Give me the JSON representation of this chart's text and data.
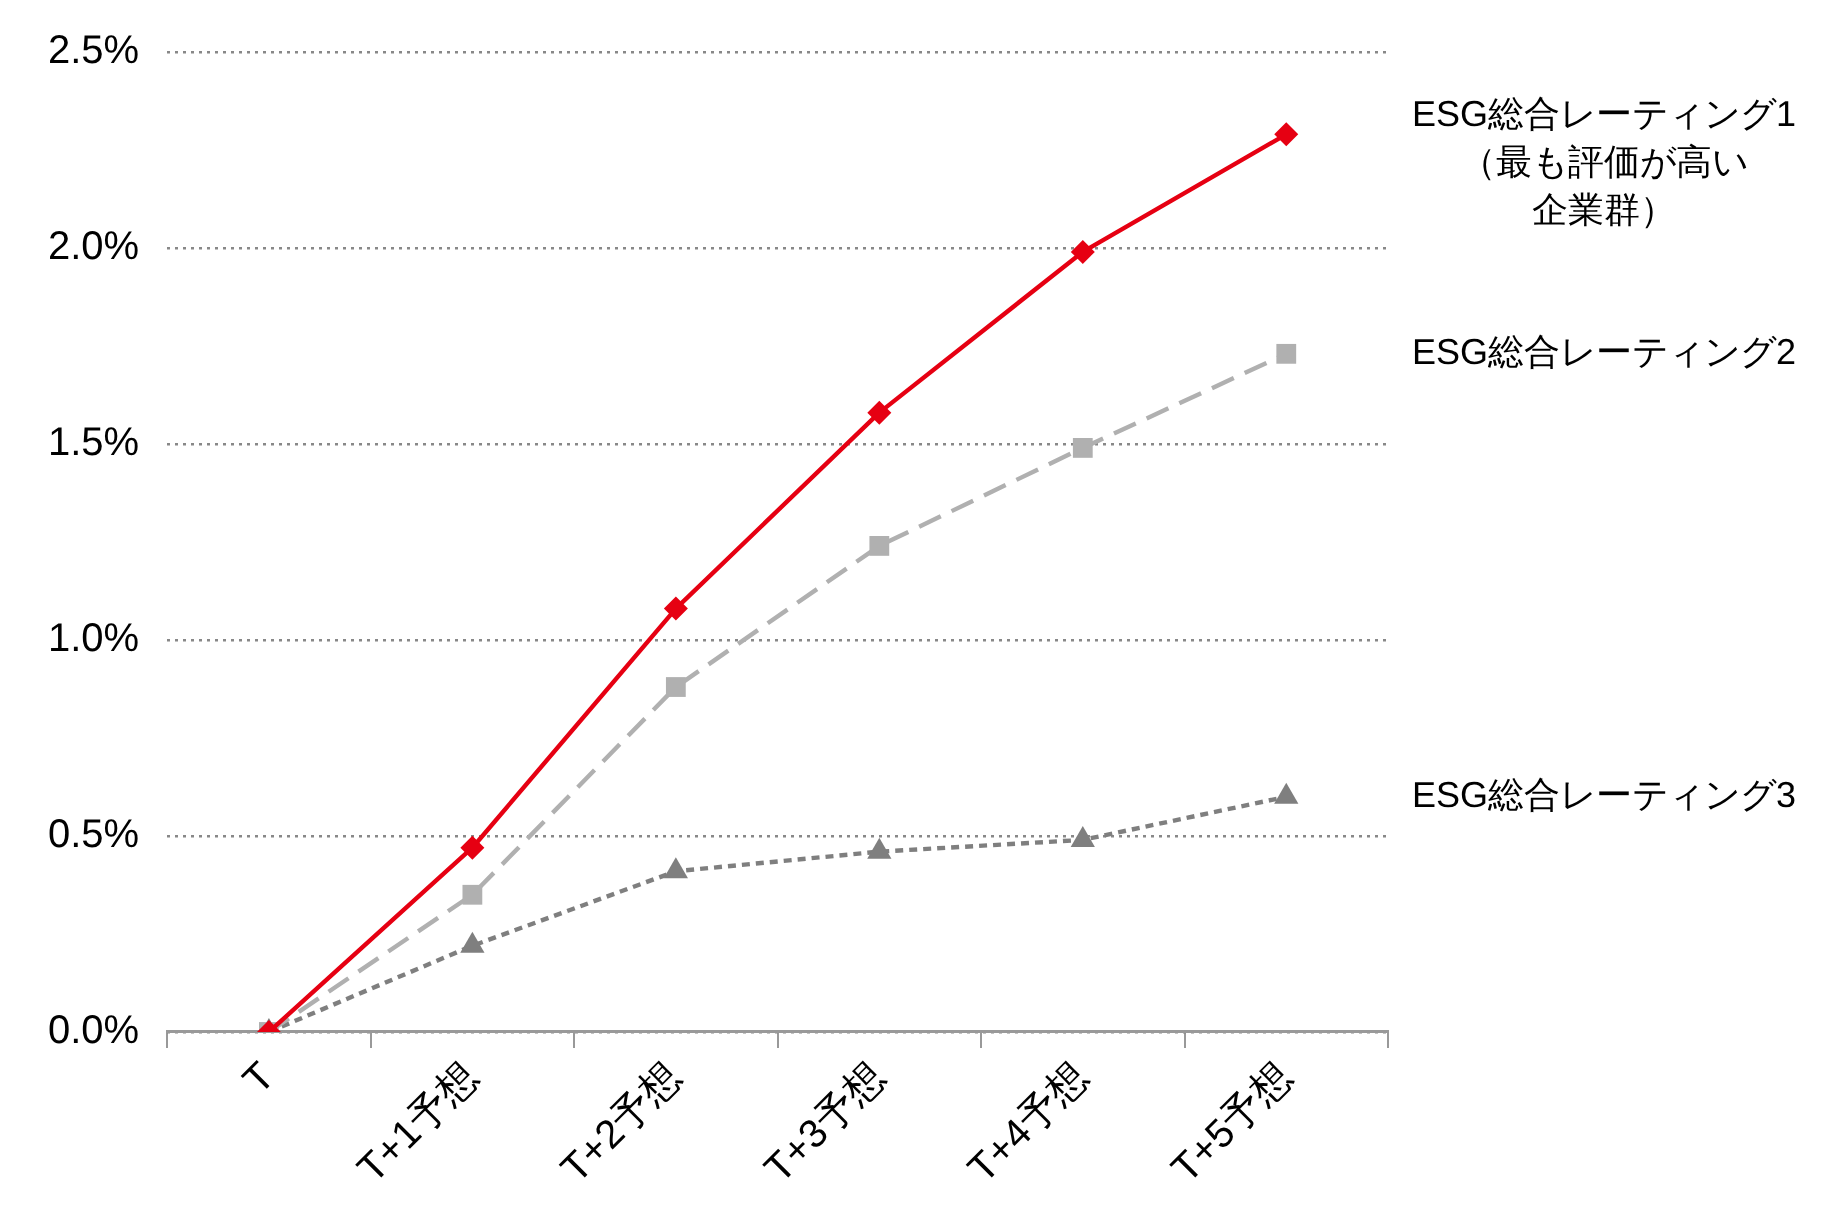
{
  "chart_data": {
    "type": "line",
    "categories": [
      "T",
      "T+1予想",
      "T+2予想",
      "T+3予想",
      "T+4予想",
      "T+5予想"
    ],
    "series": [
      {
        "name": "ESG総合レーティング1（最も評価が高い企業群）",
        "color": "#e60012",
        "marker": "diamond",
        "line_style": "solid",
        "values": [
          0,
          0.47,
          1.08,
          1.58,
          1.99,
          2.29
        ]
      },
      {
        "name": "ESG総合レーティング2",
        "color": "#b0b0b0",
        "marker": "square",
        "line_style": "dashed",
        "values": [
          0,
          0.35,
          0.88,
          1.24,
          1.49,
          1.73
        ]
      },
      {
        "name": "ESG総合レーティング3",
        "color": "#7f7f7f",
        "marker": "triangle",
        "line_style": "dotted",
        "values": [
          0,
          0.22,
          0.41,
          0.46,
          0.49,
          0.6
        ]
      }
    ],
    "ylim": [
      0,
      2.5
    ],
    "yticks": [
      {
        "value": 0,
        "label": "0.0%"
      },
      {
        "value": 0.5,
        "label": "0.5%"
      },
      {
        "value": 1,
        "label": "1.0%"
      },
      {
        "value": 1.5,
        "label": "1.5%"
      },
      {
        "value": 2,
        "label": "2.0%"
      },
      {
        "value": 2.5,
        "label": "2.5%"
      }
    ],
    "grid": "y",
    "legend": false
  }
}
